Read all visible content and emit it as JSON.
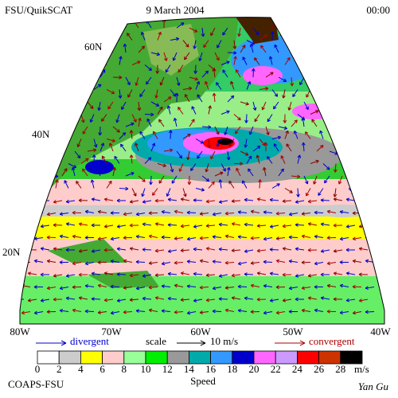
{
  "header": {
    "left": "FSU/QuikSCAT",
    "center": "9 March 2004",
    "right": "00:00"
  },
  "map": {
    "lat_labels": [
      "60N",
      "40N",
      "20N"
    ],
    "lon_labels": [
      "80W",
      "70W",
      "60W",
      "50W",
      "40W"
    ]
  },
  "legend": {
    "divergent": "divergent",
    "scale": "scale",
    "scale_value": "10 m/s",
    "convergent": "convergent"
  },
  "colorbar": {
    "ticks": [
      0,
      2,
      4,
      6,
      8,
      10,
      12,
      14,
      16,
      18,
      20,
      22,
      24,
      26,
      28
    ],
    "colors": [
      "#ffffff",
      "#cccccc",
      "#ffff00",
      "#ffcccc",
      "#99ff99",
      "#00ee00",
      "#999999",
      "#00aaaa",
      "#3399ff",
      "#0000cc",
      "#ff66ff",
      "#cc99ff",
      "#ff0000",
      "#cc3300",
      "#000000"
    ],
    "unit": "m/s",
    "label": "Speed"
  },
  "footer": {
    "left": "COAPS-FSU",
    "right": "Yan Gu"
  }
}
